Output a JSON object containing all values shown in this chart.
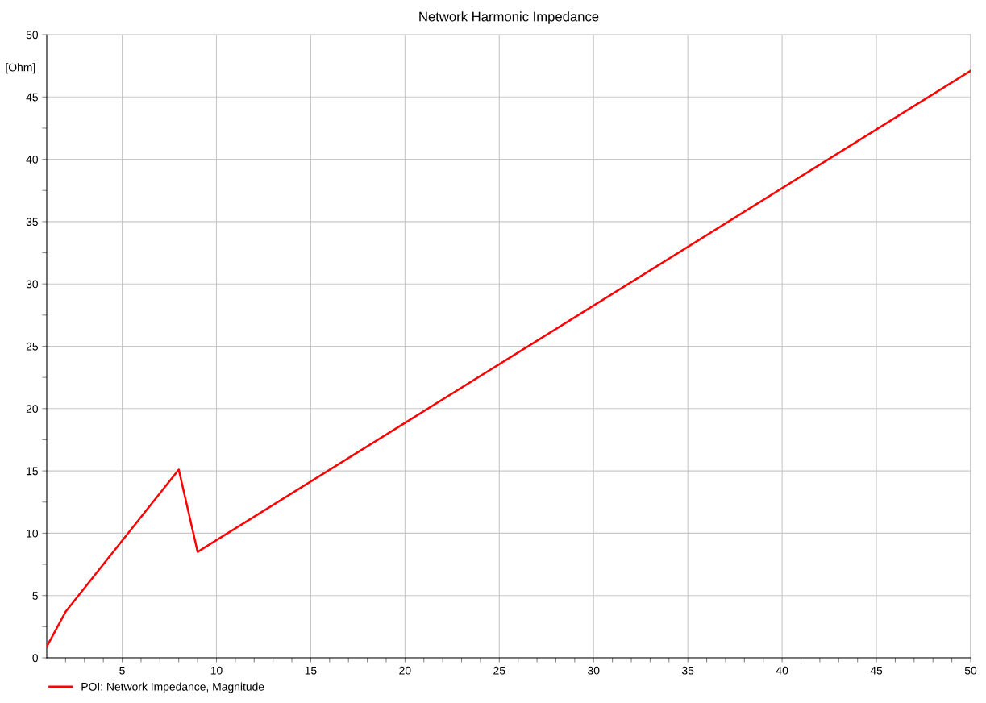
{
  "chart_data": {
    "type": "line",
    "title": "Network Harmonic Impedance",
    "ylabel": "[Ohm]",
    "x": [
      1,
      2,
      8,
      9,
      50
    ],
    "series": [
      {
        "name": "POI: Network Impedance, Magnitude",
        "color": "#ff0000",
        "values": [
          0.9,
          3.7,
          15.1,
          8.5,
          47.1
        ]
      }
    ],
    "xlim": [
      1,
      50
    ],
    "xticks": [
      {
        "value": 2,
        "label": null
      },
      {
        "value": 3,
        "label": null
      },
      {
        "value": 4,
        "label": null
      },
      5,
      {
        "value": 6,
        "label": null
      },
      {
        "value": 7,
        "label": null
      },
      {
        "value": 8,
        "label": null
      },
      {
        "value": 9,
        "label": null
      },
      10,
      {
        "value": 11,
        "label": null
      },
      {
        "value": 12,
        "label": null
      },
      {
        "value": 13,
        "label": null
      },
      {
        "value": 14,
        "label": null
      },
      15,
      {
        "value": 16,
        "label": null
      },
      {
        "value": 17,
        "label": null
      },
      {
        "value": 18,
        "label": null
      },
      {
        "value": 19,
        "label": null
      },
      20,
      {
        "value": 21,
        "label": null
      },
      {
        "value": 22,
        "label": null
      },
      {
        "value": 23,
        "label": null
      },
      {
        "value": 24,
        "label": null
      },
      25,
      {
        "value": 26,
        "label": null
      },
      {
        "value": 27,
        "label": null
      },
      {
        "value": 28,
        "label": null
      },
      {
        "value": 29,
        "label": null
      },
      30,
      {
        "value": 31,
        "label": null
      },
      {
        "value": 32,
        "label": null
      },
      {
        "value": 33,
        "label": null
      },
      {
        "value": 34,
        "label": null
      },
      35,
      {
        "value": 36,
        "label": null
      },
      {
        "value": 37,
        "label": null
      },
      {
        "value": 38,
        "label": null
      },
      {
        "value": 39,
        "label": null
      },
      40,
      {
        "value": 41,
        "label": null
      },
      {
        "value": 42,
        "label": null
      },
      {
        "value": 43,
        "label": null
      },
      {
        "value": 44,
        "label": null
      },
      45,
      {
        "value": 46,
        "label": null
      },
      {
        "value": 47,
        "label": null
      },
      {
        "value": 48,
        "label": null
      },
      {
        "value": 49,
        "label": null
      },
      50
    ],
    "ylim": [
      0,
      50
    ],
    "yticks": [
      0,
      {
        "value": 2.5,
        "label": null
      },
      5,
      {
        "value": 7.5,
        "label": null
      },
      10,
      {
        "value": 12.5,
        "label": null
      },
      15,
      {
        "value": 17.5,
        "label": null
      },
      20,
      {
        "value": 22.5,
        "label": null
      },
      25,
      {
        "value": 27.5,
        "label": null
      },
      30,
      {
        "value": 32.5,
        "label": null
      },
      35,
      {
        "value": 37.5,
        "label": null
      },
      40,
      {
        "value": 42.5,
        "label": null
      },
      45,
      50
    ],
    "grid": true,
    "legend": "bottom left",
    "marker": "none",
    "line_style": "solid"
  }
}
